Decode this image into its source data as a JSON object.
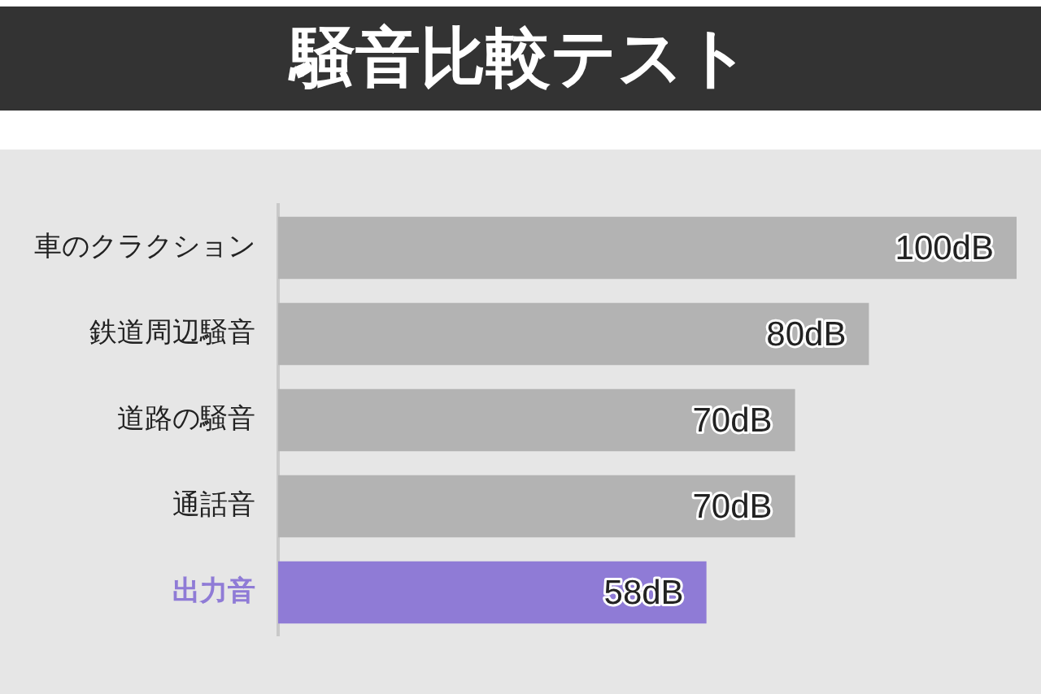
{
  "chart_data": {
    "type": "bar",
    "title": "騒音比較テスト",
    "orientation": "horizontal",
    "categories": [
      "車のクラクション",
      "鉄道周辺騒音",
      "道路の騒音",
      "通話音",
      "出力音"
    ],
    "values": [
      100,
      80,
      70,
      70,
      58
    ],
    "colors": [
      "#b3b3b3",
      "#b3b3b3",
      "#b3b3b3",
      "#b3b3b3",
      "#8f7bd6"
    ],
    "value_labels": [
      "100dB",
      "80dB",
      "70dB",
      "70dB",
      "58dB"
    ],
    "xlim": [
      0,
      100
    ],
    "grid": false,
    "legend": false,
    "tick_labels": "y"
  }
}
